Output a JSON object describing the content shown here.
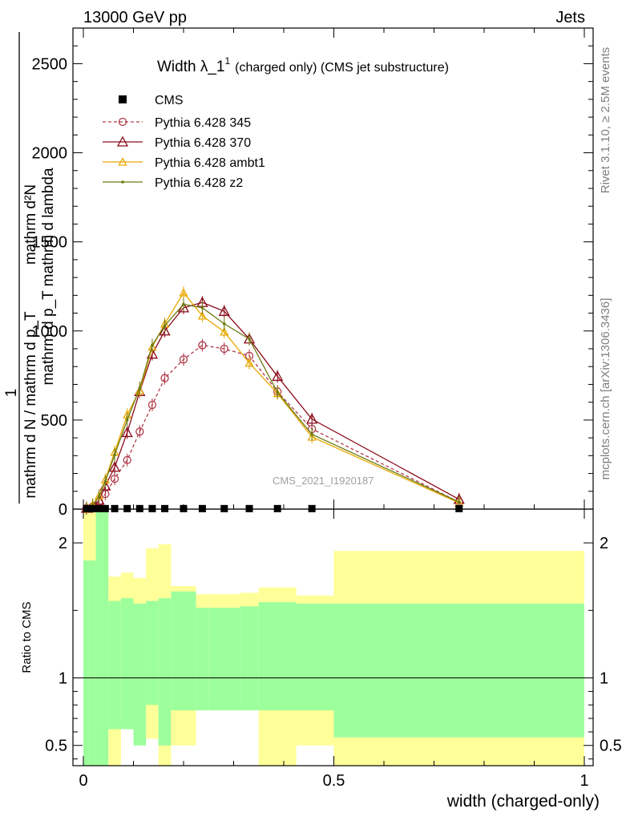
{
  "header": {
    "left": "13000 GeV pp",
    "right": "Jets"
  },
  "side_labels": {
    "rivet": "Rivet 3.1.10, ≥ 2.5M events",
    "mcplots": "mcplots.cern.ch [arXiv:1306.3436]"
  },
  "watermark": "CMS_2021_I1920187",
  "colors": {
    "cms": "#000000",
    "p345": "#b03a48",
    "p370": "#8b0a1a",
    "ambt1": "#e8a800",
    "z2": "#6b7a10",
    "band_inner": "#9cff9c",
    "band_outer": "#ffff99"
  },
  "chart_data": [
    {
      "type": "line",
      "title_main": "Width λ_1",
      "title_sup": "1",
      "title_rest": "(charged only) (CMS jet substructure)",
      "ylabel_top": "1",
      "ylabel_frac_num": "mathrm d",
      "ylabel_frac_den": "N",
      "ylabel_line1": "mathrm d²N",
      "ylabel_line2": "mathrm d p_T mathrm d lambda",
      "ylabel_line3": "mathrm d N / mathrm d p_T",
      "xlim": [
        0,
        1
      ],
      "ylim": [
        0,
        2700
      ],
      "yticks": [
        0,
        500,
        1000,
        1500,
        2000,
        2500
      ],
      "ytick_labels": [
        "0",
        "500",
        "1000",
        "1500",
        "2000",
        "2500"
      ],
      "cms_x": [
        0.00625,
        0.01875,
        0.03125,
        0.04375,
        0.0625,
        0.0875,
        0.1125,
        0.1375,
        0.1625,
        0.2,
        0.2375,
        0.28125,
        0.33125,
        0.3875,
        0.45625,
        0.75
      ],
      "cms_y": [
        3,
        3,
        3,
        3,
        3,
        3,
        3,
        3,
        3,
        3,
        3,
        3,
        3,
        3,
        3,
        3
      ],
      "series": [
        {
          "name": "Pythia 6.428 345",
          "marker": "circle",
          "dashed": true,
          "color_key": "p345",
          "x": [
            0.00625,
            0.01875,
            0.03125,
            0.04375,
            0.0625,
            0.0875,
            0.1125,
            0.1375,
            0.1625,
            0.2,
            0.2375,
            0.28125,
            0.33125,
            0.3875,
            0.45625,
            0.75
          ],
          "y": [
            5,
            15,
            40,
            85,
            170,
            275,
            435,
            585,
            735,
            840,
            920,
            900,
            860,
            660,
            450,
            40
          ]
        },
        {
          "name": "Pythia 6.428 370",
          "marker": "triangle",
          "dashed": false,
          "color_key": "p370",
          "x": [
            0.00625,
            0.01875,
            0.03125,
            0.04375,
            0.0625,
            0.0875,
            0.1125,
            0.1375,
            0.1625,
            0.2,
            0.2375,
            0.28125,
            0.33125,
            0.3875,
            0.45625,
            0.75
          ],
          "y": [
            5,
            15,
            50,
            130,
            235,
            430,
            660,
            870,
            1000,
            1130,
            1160,
            1110,
            955,
            745,
            505,
            55
          ]
        },
        {
          "name": "Pythia 6.428 ambt1",
          "marker": "triangle-small",
          "dashed": false,
          "color_key": "ambt1",
          "x": [
            0.00625,
            0.01875,
            0.03125,
            0.04375,
            0.0625,
            0.0875,
            0.1125,
            0.1375,
            0.1625,
            0.2,
            0.2375,
            0.28125,
            0.33125,
            0.3875,
            0.45625,
            0.75
          ],
          "y": [
            8,
            25,
            75,
            165,
            320,
            530,
            665,
            910,
            1040,
            1215,
            1085,
            995,
            820,
            650,
            405,
            35
          ]
        },
        {
          "name": "Pythia 6.428 z2",
          "marker": "dot",
          "dashed": false,
          "color_key": "z2",
          "x": [
            0.00625,
            0.01875,
            0.03125,
            0.04375,
            0.0625,
            0.0875,
            0.1125,
            0.1375,
            0.1625,
            0.2,
            0.2375,
            0.28125,
            0.33125,
            0.3875,
            0.45625,
            0.75
          ],
          "y": [
            6,
            22,
            70,
            155,
            305,
            500,
            680,
            920,
            1030,
            1150,
            1130,
            1040,
            955,
            655,
            420,
            40
          ]
        }
      ]
    },
    {
      "type": "area",
      "ylabel": "Ratio to CMS",
      "xlabel": "width (charged-only)",
      "xlim": [
        0,
        1
      ],
      "ylim": [
        0.35,
        2.25
      ],
      "xticks": [
        0,
        0.5,
        1
      ],
      "xtick_labels": [
        "0",
        "0.5",
        "1"
      ],
      "yticks": [
        0.5,
        1,
        2
      ],
      "ytick_labels": [
        "0.5",
        "1",
        "2"
      ],
      "reference": 1,
      "edges": [
        0,
        0.0125,
        0.025,
        0.0375,
        0.05,
        0.075,
        0.1,
        0.125,
        0.15,
        0.175,
        0.225,
        0.25,
        0.3125,
        0.35,
        0.425,
        0.5,
        1.0
      ],
      "outer_hi": [
        2.4,
        2.4,
        2.4,
        2.4,
        1.75,
        1.78,
        1.74,
        1.96,
        1.99,
        1.68,
        1.62,
        1.62,
        1.63,
        1.67,
        1.61,
        1.94
      ],
      "outer_lo": [
        0.35,
        0.35,
        0.35,
        0.62,
        0.35,
        0.7,
        0.69,
        0.55,
        0.35,
        0.5,
        0.86,
        0.86,
        0.86,
        0.35,
        0.5,
        0.35
      ],
      "inner_hi": [
        1.87,
        1.87,
        2.4,
        2.4,
        1.57,
        1.59,
        1.55,
        1.57,
        1.59,
        1.64,
        1.52,
        1.52,
        1.53,
        1.56,
        1.55,
        1.55
      ],
      "inner_lo": [
        0.35,
        0.35,
        0.35,
        0.35,
        0.35,
        0.35,
        0.35,
        0.35,
        0.35,
        0.35,
        0.35,
        0.35,
        0.35,
        0.35,
        0.35,
        0.35
      ],
      "inner_lo_vis": [
        0.35,
        0.35,
        0.35,
        0.35,
        0.62,
        0.62,
        0.5,
        0.8,
        0.5,
        0.76,
        0.76,
        0.76,
        0.76,
        0.76,
        0.76,
        0.56
      ]
    }
  ]
}
